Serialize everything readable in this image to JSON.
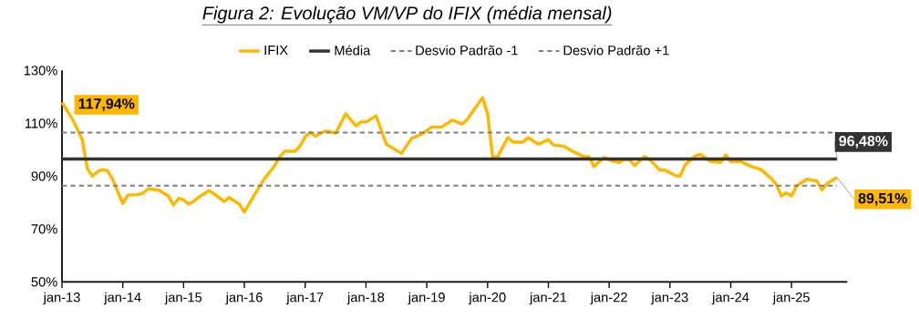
{
  "chart_data": {
    "type": "line",
    "title": "Figura 2: Evolução VM/VP do IFIX (média mensal)",
    "xlim": [
      "2013-01",
      "2025-12"
    ],
    "xticks": [
      {
        "value": "2013-01",
        "label": "jan-13"
      },
      {
        "value": "2014-01",
        "label": "jan-14"
      },
      {
        "value": "2015-01",
        "label": "jan-15"
      },
      {
        "value": "2016-01",
        "label": "jan-16"
      },
      {
        "value": "2017-01",
        "label": "jan-17"
      },
      {
        "value": "2018-01",
        "label": "jan-18"
      },
      {
        "value": "2019-01",
        "label": "jan-19"
      },
      {
        "value": "2020-01",
        "label": "jan-20"
      },
      {
        "value": "2021-01",
        "label": "jan-21"
      },
      {
        "value": "2022-01",
        "label": "jan-22"
      },
      {
        "value": "2023-01",
        "label": "jan-23"
      },
      {
        "value": "2024-01",
        "label": "jan-24"
      },
      {
        "value": "2025-01",
        "label": "jan-25"
      }
    ],
    "ylim": [
      50,
      130
    ],
    "yticks": [
      {
        "value": 50,
        "label": "50%"
      },
      {
        "value": 70,
        "label": "70%"
      },
      {
        "value": 90,
        "label": "90%"
      },
      {
        "value": 110,
        "label": "110%"
      },
      {
        "value": 130,
        "label": "130%"
      }
    ],
    "legend": "top",
    "grid": false,
    "marker": "none",
    "series": [
      {
        "name": "IFIX",
        "color": "#ffb800",
        "line_style": "solid",
        "x": [
          "2013-01",
          "2013-03",
          "2013-04",
          "2013-05",
          "2013-06",
          "2013-07",
          "2013-08",
          "2013-09",
          "2013-10",
          "2013-11",
          "2014-01",
          "2014-02",
          "2014-04",
          "2014-05",
          "2014-06",
          "2014-08",
          "2014-10",
          "2014-11",
          "2014-12",
          "2015-01",
          "2015-02",
          "2015-03",
          "2015-04",
          "2015-06",
          "2015-07",
          "2015-09",
          "2015-10",
          "2015-12",
          "2016-01",
          "2016-03",
          "2016-05",
          "2016-07",
          "2016-08",
          "2016-09",
          "2016-11",
          "2016-12",
          "2017-01",
          "2017-02",
          "2017-03",
          "2017-05",
          "2017-07",
          "2017-09",
          "2017-11",
          "2017-12",
          "2018-01",
          "2018-03",
          "2018-05",
          "2018-08",
          "2018-10",
          "2018-12",
          "2019-02",
          "2019-04",
          "2019-06",
          "2019-08",
          "2019-09",
          "2019-11",
          "2019-12",
          "2020-01",
          "2020-02",
          "2020-03",
          "2020-05",
          "2020-06",
          "2020-08",
          "2020-09",
          "2020-11",
          "2021-01",
          "2021-02",
          "2021-04",
          "2021-06",
          "2021-08",
          "2021-09",
          "2021-10",
          "2021-12",
          "2022-01",
          "2022-02",
          "2022-03",
          "2022-04",
          "2022-05",
          "2022-06",
          "2022-08",
          "2022-09",
          "2022-11",
          "2022-12",
          "2023-02",
          "2023-03",
          "2023-04",
          "2023-06",
          "2023-07",
          "2023-09",
          "2023-11",
          "2023-12",
          "2024-01",
          "2024-03",
          "2024-05",
          "2024-07",
          "2024-09",
          "2024-10",
          "2024-11",
          "2024-12",
          "2025-01",
          "2025-02",
          "2025-04",
          "2025-06",
          "2025-07",
          "2025-08",
          "2025-10"
        ],
        "values": [
          117.94,
          111.8,
          107.8,
          103.8,
          92.9,
          90.0,
          91.7,
          92.5,
          92.0,
          88.8,
          79.6,
          82.9,
          83.0,
          83.6,
          85.2,
          84.8,
          82.5,
          79.1,
          81.6,
          81.0,
          79.4,
          80.5,
          82.1,
          84.5,
          83.3,
          80.4,
          81.9,
          79.4,
          76.4,
          83.0,
          89.1,
          94.0,
          97.4,
          99.4,
          99.4,
          101.5,
          104.9,
          106.6,
          105.1,
          107.1,
          106.3,
          113.6,
          109.0,
          110.5,
          110.5,
          112.8,
          102.1,
          98.6,
          104.3,
          105.9,
          108.6,
          108.6,
          111.2,
          109.7,
          111.5,
          117.0,
          119.7,
          113.6,
          97.4,
          97.4,
          104.6,
          102.9,
          102.9,
          104.6,
          102.1,
          103.8,
          101.8,
          101.3,
          99.2,
          97.4,
          97.4,
          93.7,
          97.1,
          96.3,
          95.5,
          95.2,
          96.3,
          96.3,
          94.0,
          97.4,
          96.3,
          92.3,
          92.3,
          90.3,
          90.0,
          94.3,
          97.7,
          98.2,
          95.6,
          95.2,
          98.0,
          95.5,
          95.5,
          93.7,
          92.5,
          89.1,
          86.8,
          82.5,
          83.7,
          82.5,
          86.3,
          88.8,
          88.2,
          84.8,
          87.2,
          89.51
        ]
      },
      {
        "name": "Média",
        "color": "#333333",
        "line_style": "solid",
        "x": [
          "2013-01",
          "2025-10"
        ],
        "values": [
          96.48,
          96.48
        ]
      },
      {
        "name": "Desvio Padrão -1",
        "color": "#808080",
        "line_style": "dashed",
        "x": [
          "2013-01",
          "2025-10"
        ],
        "values": [
          86.4,
          86.4
        ]
      },
      {
        "name": "Desvio Padrão +1",
        "color": "#808080",
        "line_style": "dashed",
        "x": [
          "2013-01",
          "2025-10"
        ],
        "values": [
          106.5,
          106.5
        ]
      }
    ],
    "annotations": [
      {
        "text": "117,94%",
        "x": "2013-01",
        "y": 117.94
      },
      {
        "text": "96,48%",
        "x": "2025-10",
        "y": 96.48
      },
      {
        "text": "89,51%",
        "x": "2025-10",
        "y": 89.51
      }
    ]
  }
}
